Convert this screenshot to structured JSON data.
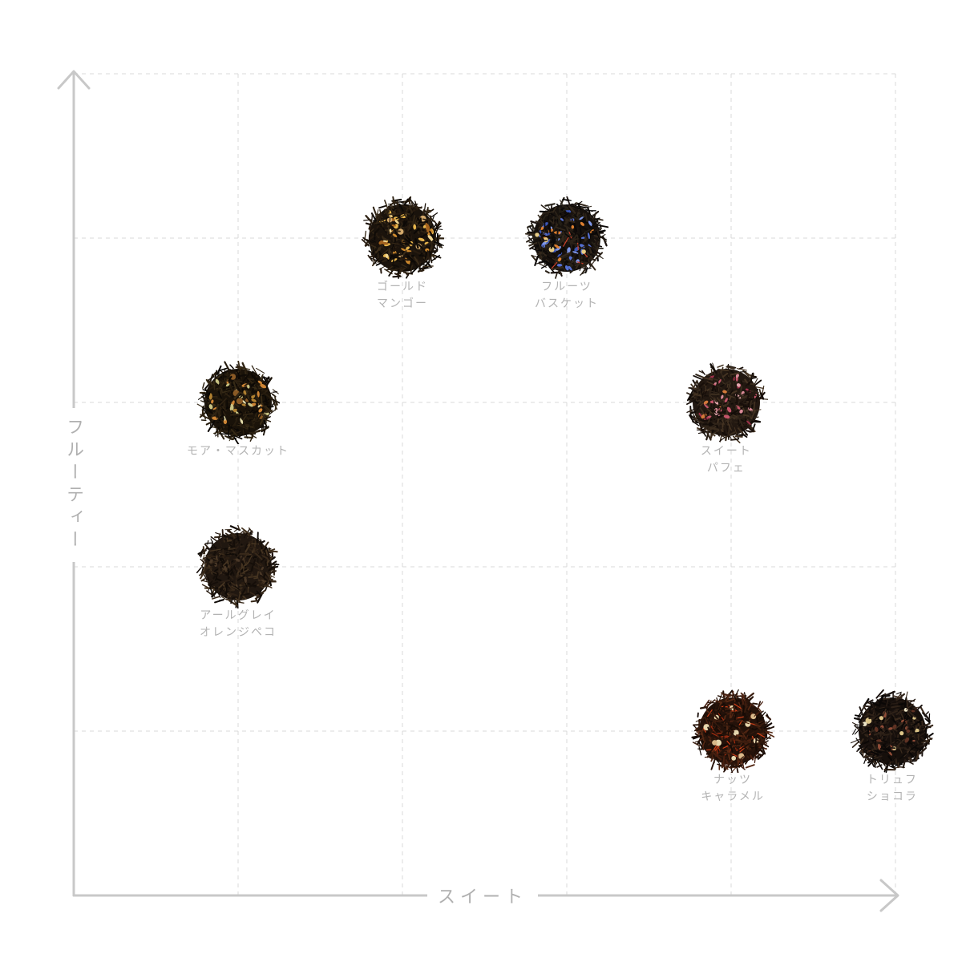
{
  "axes": {
    "x_label": "スイート",
    "y_label": "フルーティー",
    "axis_color": "#c8c8c8",
    "grid_color": "#d8d8d8",
    "axis_label_color": "#b0b0b0",
    "point_label_color": "#b3b3b3"
  },
  "chart_data": {
    "type": "scatter",
    "title": "",
    "xlabel": "スイート",
    "ylabel": "フルーティー",
    "xlim": [
      0,
      5
    ],
    "ylim": [
      0,
      5
    ],
    "grid": "dashed, spacing 1 unit",
    "legend": "none",
    "points": [
      {
        "name": "ゴールドマンゴー",
        "label_lines": [
          "ゴールド",
          "マンゴー"
        ],
        "sweet": 2.0,
        "fruity": 4.0,
        "base_color": "#1a130c",
        "leaf_colors": [
          "#110c07",
          "#1d140c",
          "#271b10",
          "#2f2314",
          "#0c0906",
          "#382a18"
        ],
        "accents": [
          {
            "color": "#e6b44c",
            "count": 20,
            "type": "petal"
          },
          {
            "color": "#cf8a2e",
            "count": 12,
            "type": "petal"
          },
          {
            "color": "#f0d693",
            "count": 7,
            "type": "petal"
          },
          {
            "color": "#a3621f",
            "count": 7,
            "type": "petal"
          },
          {
            "color": "#d3a96b",
            "count": 5,
            "type": "ball"
          }
        ]
      },
      {
        "name": "フルーツバスケット",
        "label_lines": [
          "フルーツ",
          "バスケット"
        ],
        "sweet": 3.0,
        "fruity": 4.0,
        "base_color": "#16110d",
        "leaf_colors": [
          "#0e0a08",
          "#1c1410",
          "#252017",
          "#2b2218",
          "#0a0808",
          "#33281c"
        ],
        "accents": [
          {
            "color": "#5570d2",
            "count": 18,
            "type": "petal"
          },
          {
            "color": "#7e96e6",
            "count": 9,
            "type": "petal"
          },
          {
            "color": "#3a55b5",
            "count": 8,
            "type": "petal"
          },
          {
            "color": "#dd7f2f",
            "count": 9,
            "type": "petal"
          },
          {
            "color": "#c8402a",
            "count": 6,
            "type": "thread"
          },
          {
            "color": "#e8cd86",
            "count": 4,
            "type": "ball"
          }
        ]
      },
      {
        "name": "モア・マスカット",
        "label_lines": [
          "モア・マスカット"
        ],
        "sweet": 1.0,
        "fruity": 3.0,
        "base_color": "#191209",
        "leaf_colors": [
          "#100b06",
          "#1c140a",
          "#261c0e",
          "#2e2212",
          "#0b0805",
          "#362a16"
        ],
        "accents": [
          {
            "color": "#cd8434",
            "count": 13,
            "type": "petal"
          },
          {
            "color": "#b08030",
            "count": 6,
            "type": "petal"
          },
          {
            "color": "#c9c383",
            "count": 10,
            "type": "petal"
          },
          {
            "color": "#e4dcab",
            "count": 5,
            "type": "petal"
          },
          {
            "color": "#8a5a25",
            "count": 5,
            "type": "ball"
          }
        ]
      },
      {
        "name": "スイートパフェ",
        "label_lines": [
          "スイート",
          "パフェ"
        ],
        "sweet": 3.97,
        "fruity": 3.0,
        "base_color": "#221811",
        "leaf_colors": [
          "#180f0a",
          "#241a12",
          "#302419",
          "#3a2c1e",
          "#120c08",
          "#443322"
        ],
        "accents": [
          {
            "color": "#c4556a",
            "count": 12,
            "type": "petal"
          },
          {
            "color": "#d98a97",
            "count": 8,
            "type": "petal"
          },
          {
            "color": "#9c3049",
            "count": 7,
            "type": "petal"
          },
          {
            "color": "#e3a7ae",
            "count": 4,
            "type": "petal"
          },
          {
            "color": "#d4793a",
            "count": 4,
            "type": "petal"
          }
        ]
      },
      {
        "name": "アールグレイ オレンジペコ",
        "label_lines": [
          "アールグレイ",
          "オレンジペコ"
        ],
        "sweet": 1.0,
        "fruity": 2.0,
        "base_color": "#201710",
        "leaf_colors": [
          "#150e09",
          "#221811",
          "#2d2015",
          "#38291a",
          "#100b07",
          "#453421"
        ],
        "accents": [
          {
            "color": "#4a3827",
            "count": 14,
            "type": "petal"
          },
          {
            "color": "#2a1d12",
            "count": 8,
            "type": "petal"
          }
        ]
      },
      {
        "name": "ナッツキャラメル",
        "label_lines": [
          "ナッツ",
          "キャラメル"
        ],
        "sweet": 4.01,
        "fruity": 1.0,
        "base_color": "#24120a",
        "leaf_colors": [
          "#1c0e07",
          "#2a150b",
          "#391c0e",
          "#471f10",
          "#150a05",
          "#542814"
        ],
        "accents": [
          {
            "color": "#d14019",
            "count": 20,
            "type": "thread"
          },
          {
            "color": "#a62d10",
            "count": 10,
            "type": "thread"
          },
          {
            "color": "#e7d7ae",
            "count": 8,
            "type": "ball"
          },
          {
            "color": "#d9b98a",
            "count": 3,
            "type": "ball"
          }
        ]
      },
      {
        "name": "トリュフショコラ",
        "label_lines": [
          "トリュフ",
          "ショコラ"
        ],
        "sweet": 4.98,
        "fruity": 1.0,
        "base_color": "#160f0b",
        "leaf_colors": [
          "#0e0a08",
          "#1b1310",
          "#261b14",
          "#2f2218",
          "#0a0706",
          "#3a2a1d"
        ],
        "accents": [
          {
            "color": "#8f4c37",
            "count": 10,
            "type": "petal"
          },
          {
            "color": "#5f3223",
            "count": 8,
            "type": "petal"
          },
          {
            "color": "#dcc488",
            "count": 6,
            "type": "ball"
          },
          {
            "color": "#efe6c8",
            "count": 2,
            "type": "ball"
          }
        ]
      }
    ]
  }
}
